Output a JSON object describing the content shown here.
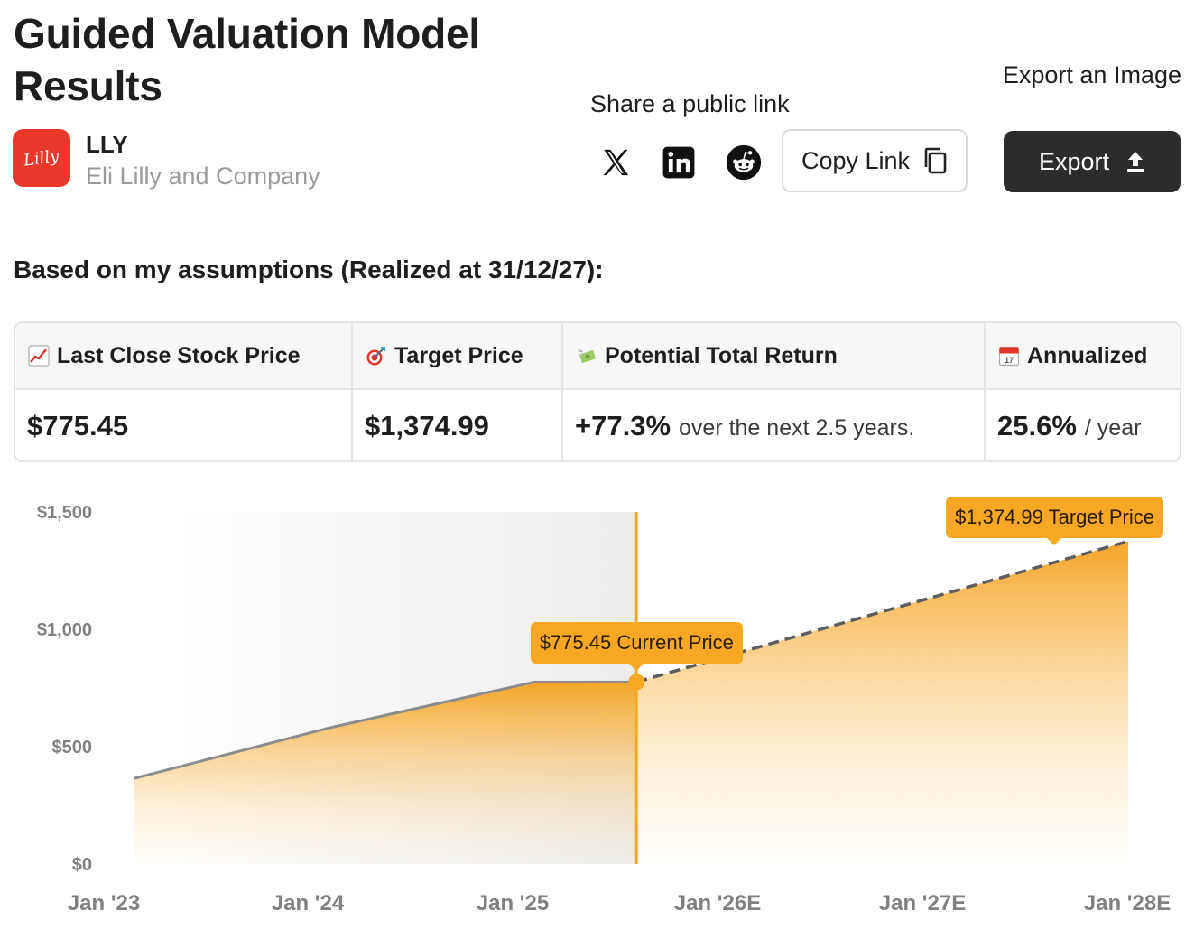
{
  "header": {
    "title": "Guided Valuation Model Results",
    "ticker": "LLY",
    "company": "Eli Lilly and Company",
    "logo_text": "Lilly"
  },
  "share": {
    "label": "Share a public link",
    "icons": [
      "x-icon",
      "linkedin-icon",
      "reddit-icon"
    ],
    "copy_label": "Copy Link"
  },
  "export": {
    "label": "Export an Image",
    "button_label": "Export"
  },
  "assumptions_heading": "Based on my assumptions (Realized at 31/12/27):",
  "summary": {
    "last_close": {
      "label": "Last Close Stock Price",
      "value": "$775.45",
      "icon": "chart-increasing-icon"
    },
    "target": {
      "label": "Target Price",
      "value": "$1,374.99",
      "icon": "target-icon"
    },
    "return": {
      "label": "Potential Total Return",
      "value": "+77.3%",
      "note": "over the next 2.5 years.",
      "icon": "money-wings-icon"
    },
    "annualized": {
      "label": "Annualized",
      "value": "25.6%",
      "note": "/ year",
      "icon": "calendar-icon",
      "calendar_day": "17"
    }
  },
  "colors": {
    "accent": "#f7a823",
    "dark": "#2c2c2c",
    "brand": "#e8382a"
  },
  "chart_data": {
    "type": "area",
    "x_ticks": [
      "Jan '23",
      "Jan '24",
      "Jan '25",
      "Jan '26E",
      "Jan '27E",
      "Jan '28E"
    ],
    "y_ticks": [
      "$1,500",
      "$1,000",
      "$500",
      "$0"
    ],
    "ylim": [
      0,
      1500
    ],
    "historical": [
      {
        "t": 2023.15,
        "v": 365
      },
      {
        "t": 2024.1,
        "v": 580
      },
      {
        "t": 2025.1,
        "v": 775
      },
      {
        "t": 2025.6,
        "v": 775.45
      }
    ],
    "projection": [
      {
        "t": 2025.6,
        "v": 775.45
      },
      {
        "t": 2028.0,
        "v": 1374.99
      }
    ],
    "current_label": "$775.45 Current Price",
    "target_label": "$1,374.99 Target Price"
  }
}
